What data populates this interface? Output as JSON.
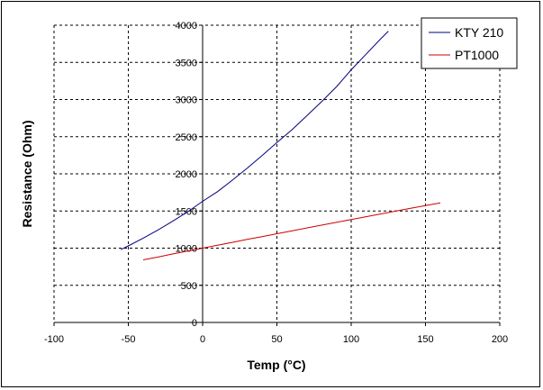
{
  "chart_data": {
    "type": "line",
    "title": "",
    "xlabel": "Temp (°C)",
    "ylabel": "Resistance (Ohm)",
    "xlim": [
      -100,
      200
    ],
    "ylim": [
      0,
      4000
    ],
    "x_ticks": [
      -100,
      -50,
      0,
      50,
      100,
      150,
      200
    ],
    "y_ticks": [
      0,
      500,
      1000,
      1500,
      2000,
      2500,
      3000,
      3500,
      4000
    ],
    "grid": "dashed",
    "legend_position": "top-right",
    "series": [
      {
        "name": "KTY 210",
        "color": "#000080",
        "x": [
          -55,
          -50,
          -40,
          -30,
          -20,
          -10,
          0,
          10,
          20,
          30,
          40,
          50,
          60,
          70,
          80,
          90,
          100,
          110,
          120,
          125
        ],
        "y": [
          980,
          1030,
          1135,
          1245,
          1365,
          1490,
          1630,
          1760,
          1915,
          2075,
          2245,
          2420,
          2590,
          2780,
          2970,
          3170,
          3400,
          3610,
          3820,
          3920
        ]
      },
      {
        "name": "PT1000",
        "color": "#cc0000",
        "x": [
          -40,
          -30,
          -20,
          -10,
          0,
          10,
          20,
          30,
          40,
          50,
          60,
          70,
          80,
          90,
          100,
          110,
          120,
          130,
          140,
          150,
          160
        ],
        "y": [
          843,
          880,
          922,
          961,
          1000,
          1039,
          1078,
          1117,
          1155,
          1194,
          1232,
          1271,
          1309,
          1347,
          1385,
          1423,
          1461,
          1498,
          1536,
          1573,
          1610
        ]
      }
    ]
  }
}
